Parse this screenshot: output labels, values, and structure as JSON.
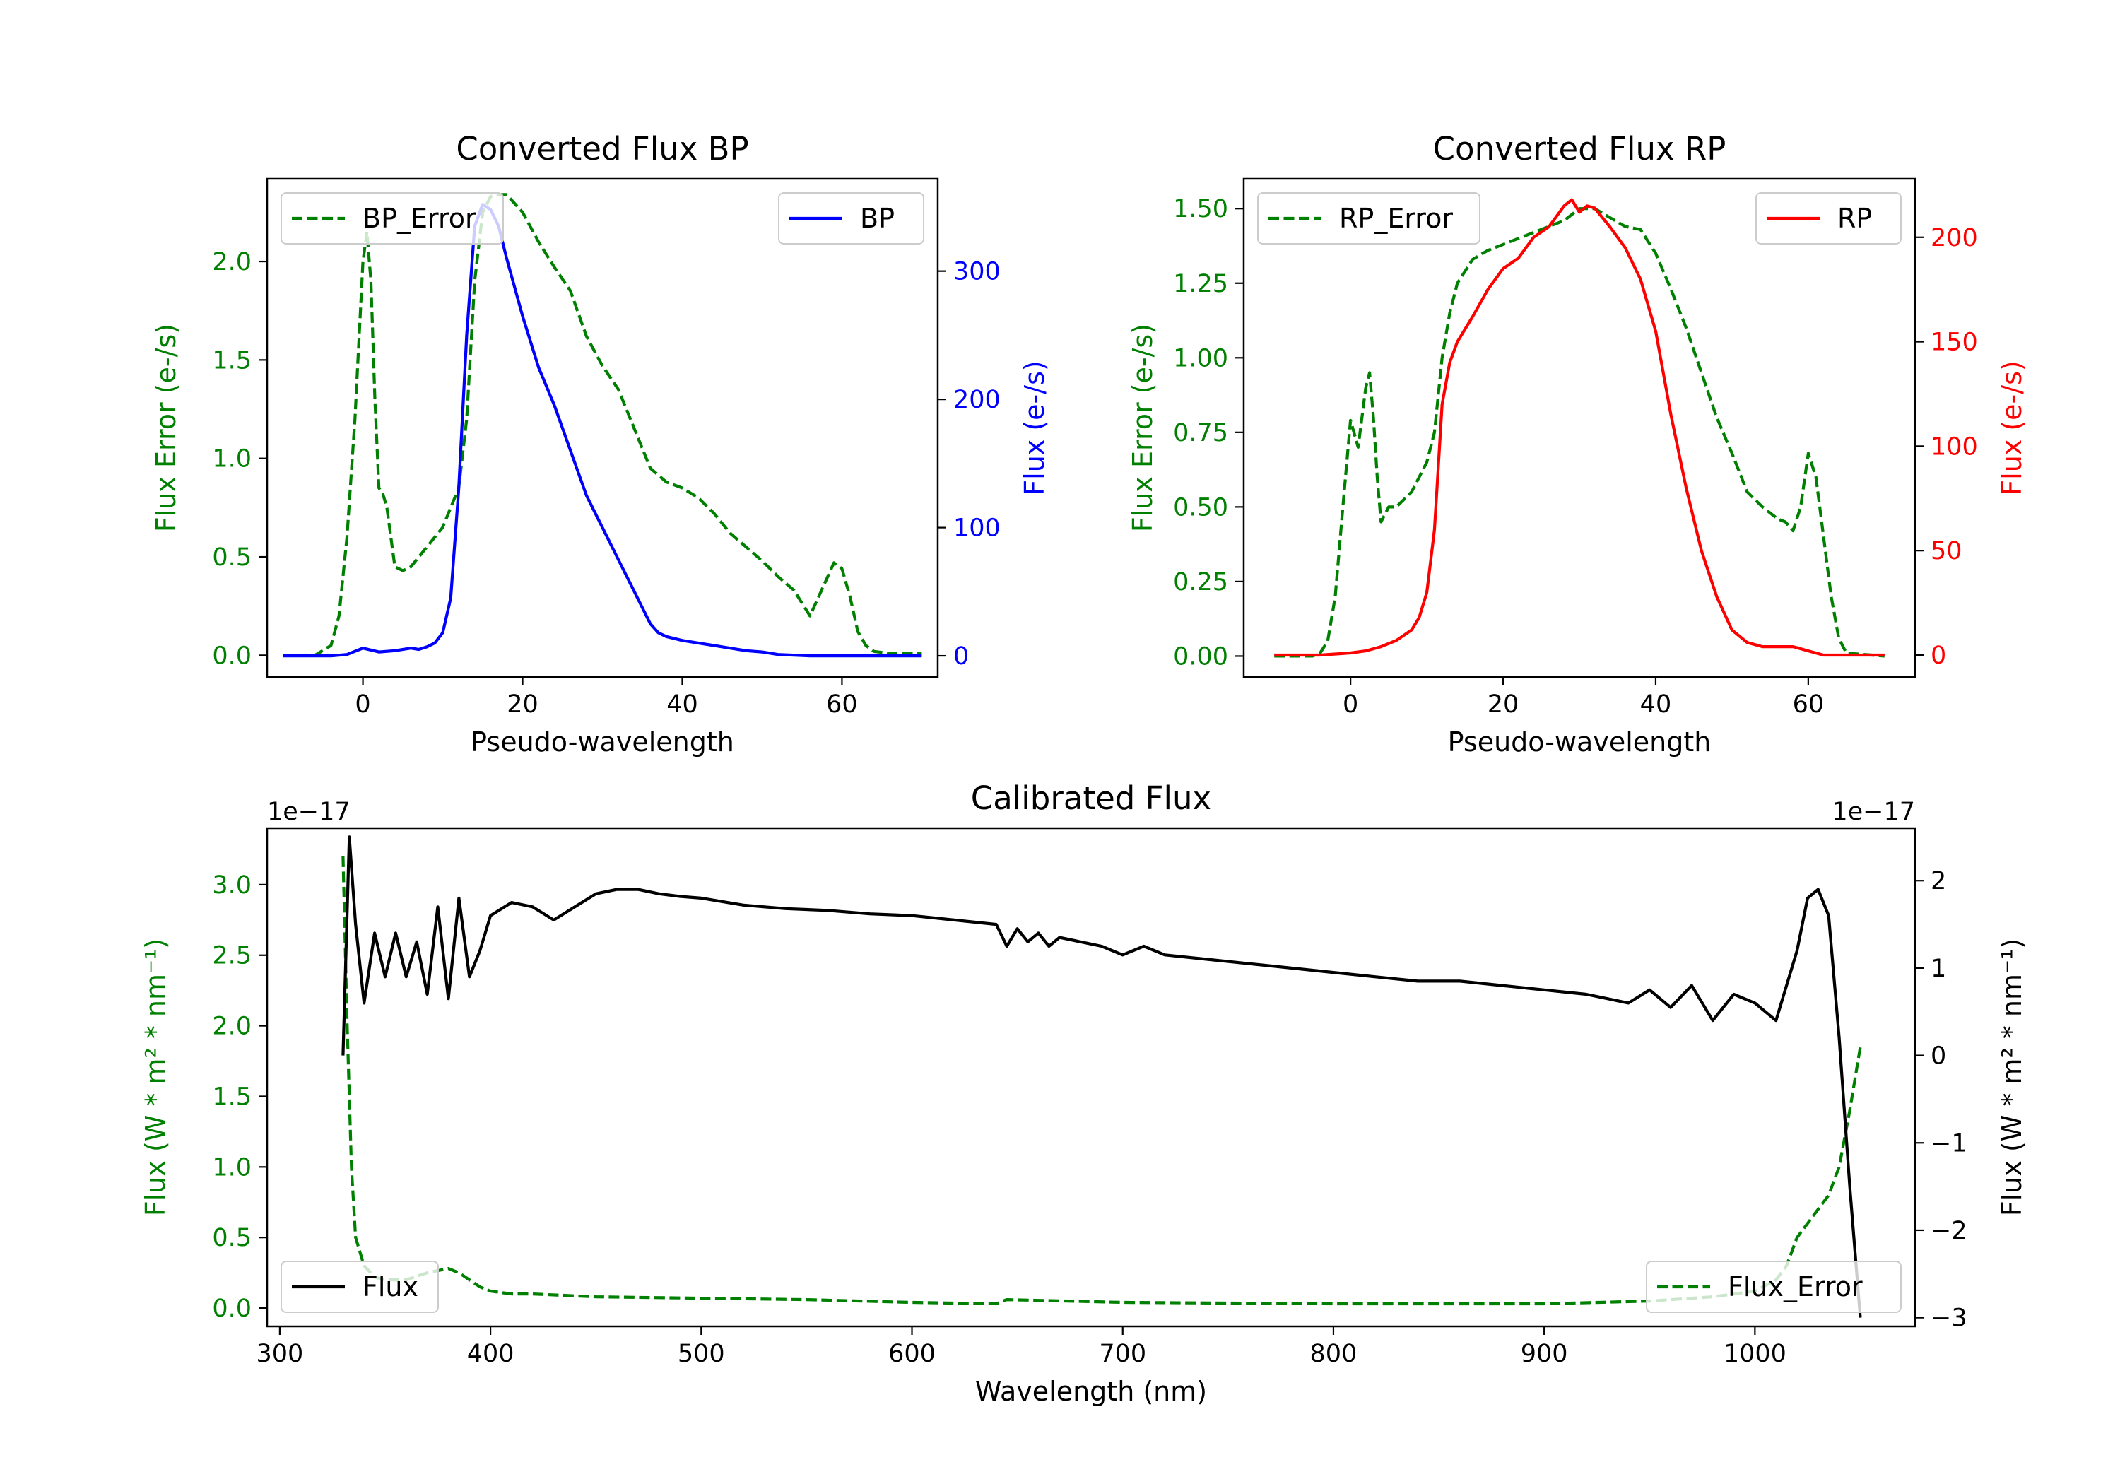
{
  "chart_data": [
    {
      "id": "bp",
      "type": "line",
      "title": "Converted Flux BP",
      "xlabel": "Pseudo-wavelength",
      "ylabel_left": "Flux Error (e-/s)",
      "ylabel_right": "Flux (e-/s)",
      "xlim": [
        -12,
        72
      ],
      "ylim_left": [
        -0.11,
        2.42
      ],
      "ylim_right": [
        -16.5,
        372
      ],
      "xticks": [
        0,
        20,
        40,
        60
      ],
      "yticks_left": [
        0.0,
        0.5,
        1.0,
        1.5,
        2.0
      ],
      "yticks_left_labels": [
        "0.0",
        "0.5",
        "1.0",
        "1.5",
        "2.0"
      ],
      "yticks_right": [
        0,
        100,
        200,
        300
      ],
      "yticks_right_labels": [
        "0",
        "100",
        "200",
        "300"
      ],
      "left_color": "#008000",
      "right_color": "#0000ff",
      "series": [
        {
          "name": "BP_Error",
          "axis": "left",
          "style": "dashed",
          "color": "#008000",
          "x": [
            -10,
            -6,
            -4,
            -3,
            -2,
            -1,
            0,
            0.5,
            1,
            1.5,
            2,
            2.5,
            3,
            3.5,
            4,
            5,
            6,
            8,
            10,
            12,
            13,
            14,
            15,
            16,
            17,
            18,
            20,
            22,
            24,
            26,
            28,
            30,
            32,
            34,
            36,
            38,
            40,
            42,
            44,
            46,
            48,
            50,
            52,
            54,
            56,
            58,
            59,
            60,
            61,
            62,
            63,
            64,
            66,
            70
          ],
          "y": [
            0.0,
            0.0,
            0.05,
            0.2,
            0.6,
            1.2,
            2.0,
            2.15,
            1.9,
            1.3,
            0.85,
            0.82,
            0.75,
            0.6,
            0.45,
            0.43,
            0.45,
            0.55,
            0.65,
            0.85,
            1.2,
            1.9,
            2.25,
            2.33,
            2.34,
            2.34,
            2.25,
            2.1,
            1.97,
            1.85,
            1.62,
            1.47,
            1.35,
            1.15,
            0.95,
            0.88,
            0.85,
            0.8,
            0.72,
            0.62,
            0.55,
            0.48,
            0.4,
            0.33,
            0.2,
            0.38,
            0.47,
            0.44,
            0.3,
            0.12,
            0.05,
            0.02,
            0.01,
            0.01
          ]
        },
        {
          "name": "BP",
          "axis": "right",
          "style": "solid",
          "color": "#0000ff",
          "x": [
            -10,
            -4,
            -2,
            0,
            2,
            4,
            6,
            7,
            8,
            9,
            10,
            11,
            12,
            13,
            14,
            15,
            16,
            17,
            18,
            20,
            22,
            24,
            26,
            28,
            30,
            32,
            34,
            36,
            37,
            38,
            40,
            42,
            44,
            46,
            48,
            50,
            52,
            56,
            60,
            64,
            70
          ],
          "y": [
            0,
            0,
            1,
            6,
            3,
            4,
            6,
            5,
            7,
            10,
            18,
            45,
            130,
            250,
            335,
            352,
            348,
            335,
            310,
            265,
            225,
            195,
            160,
            125,
            100,
            75,
            50,
            25,
            18,
            15,
            12,
            10,
            8,
            6,
            4,
            3,
            1,
            0,
            0,
            0,
            0
          ]
        }
      ],
      "legend": [
        {
          "label": "BP_Error",
          "position": "upper-left"
        },
        {
          "label": "BP",
          "position": "upper-right"
        }
      ]
    },
    {
      "id": "rp",
      "type": "line",
      "title": "Converted Flux RP",
      "xlabel": "Pseudo-wavelength",
      "ylabel_left": "Flux Error (e-/s)",
      "ylabel_right": "Flux (e-/s)",
      "xlim": [
        -14,
        74
      ],
      "ylim_left": [
        -0.07,
        1.6
      ],
      "ylim_right": [
        -10.5,
        228
      ],
      "xticks": [
        0,
        20,
        40,
        60
      ],
      "yticks_left": [
        0.0,
        0.25,
        0.5,
        0.75,
        1.0,
        1.25,
        1.5
      ],
      "yticks_left_labels": [
        "0.00",
        "0.25",
        "0.50",
        "0.75",
        "1.00",
        "1.25",
        "1.50"
      ],
      "yticks_right": [
        0,
        50,
        100,
        150,
        200
      ],
      "yticks_right_labels": [
        "0",
        "50",
        "100",
        "150",
        "200"
      ],
      "left_color": "#008000",
      "right_color": "#ff0000",
      "series": [
        {
          "name": "RP_Error",
          "axis": "left",
          "style": "dashed",
          "color": "#008000",
          "x": [
            -10,
            -5,
            -4,
            -3,
            -2,
            -1,
            0,
            1,
            2,
            2.5,
            3,
            3.5,
            4,
            5,
            6,
            8,
            10,
            11,
            12,
            13,
            14,
            16,
            18,
            20,
            22,
            24,
            26,
            28,
            30,
            32,
            34,
            36,
            38,
            40,
            42,
            44,
            46,
            48,
            50,
            52,
            54,
            56,
            57,
            58,
            59,
            60,
            61,
            62,
            63,
            64,
            65,
            70
          ],
          "y": [
            0.0,
            0.0,
            0.01,
            0.05,
            0.2,
            0.5,
            0.79,
            0.7,
            0.9,
            0.95,
            0.8,
            0.6,
            0.45,
            0.5,
            0.5,
            0.55,
            0.65,
            0.75,
            1.0,
            1.15,
            1.25,
            1.33,
            1.36,
            1.38,
            1.4,
            1.42,
            1.44,
            1.46,
            1.5,
            1.5,
            1.47,
            1.44,
            1.43,
            1.35,
            1.23,
            1.1,
            0.95,
            0.8,
            0.68,
            0.55,
            0.5,
            0.46,
            0.45,
            0.42,
            0.5,
            0.68,
            0.6,
            0.4,
            0.2,
            0.06,
            0.01,
            0.0
          ]
        },
        {
          "name": "RP",
          "axis": "right",
          "style": "solid",
          "color": "#ff0000",
          "x": [
            -10,
            -4,
            0,
            2,
            4,
            6,
            8,
            9,
            10,
            11,
            12,
            13,
            14,
            16,
            18,
            20,
            22,
            24,
            26,
            28,
            29,
            30,
            31,
            32,
            34,
            36,
            38,
            40,
            42,
            44,
            46,
            48,
            50,
            52,
            54,
            58,
            60,
            62,
            64,
            70
          ],
          "y": [
            0,
            0,
            1,
            2,
            4,
            7,
            12,
            18,
            30,
            60,
            120,
            140,
            150,
            162,
            175,
            185,
            190,
            200,
            205,
            215,
            218,
            212,
            215,
            214,
            205,
            195,
            180,
            155,
            115,
            80,
            50,
            28,
            12,
            6,
            4,
            4,
            2,
            0,
            0,
            0
          ]
        }
      ],
      "legend": [
        {
          "label": "RP_Error",
          "position": "upper-left"
        },
        {
          "label": "RP",
          "position": "upper-right"
        }
      ]
    },
    {
      "id": "cal",
      "type": "line",
      "title": "Calibrated Flux",
      "xlabel": "Wavelength (nm)",
      "ylabel_left": "Flux (W * m² * nm⁻¹)",
      "ylabel_right": "Flux (W * m² * nm⁻¹)",
      "offset_left": "1e−17",
      "offset_right": "1e−17",
      "xlim": [
        294,
        1076
      ],
      "ylim_left": [
        -0.13,
        3.4
      ],
      "ylim_right": [
        -3.1,
        2.6
      ],
      "xticks": [
        300,
        400,
        500,
        600,
        700,
        800,
        900,
        1000
      ],
      "yticks_left": [
        0.0,
        0.5,
        1.0,
        1.5,
        2.0,
        2.5,
        3.0
      ],
      "yticks_left_labels": [
        "0.0",
        "0.5",
        "1.0",
        "1.5",
        "2.0",
        "2.5",
        "3.0"
      ],
      "yticks_right": [
        -3,
        -2,
        -1,
        0,
        1,
        2
      ],
      "yticks_right_labels": [
        "−3",
        "−2",
        "−1",
        "0",
        "1",
        "2"
      ],
      "left_color": "#008000",
      "right_color": "#000000",
      "series": [
        {
          "name": "Flux_Error",
          "axis": "left",
          "style": "dashed",
          "color": "#008000",
          "x": [
            330,
            332,
            334,
            336,
            340,
            345,
            350,
            360,
            370,
            380,
            385,
            390,
            395,
            400,
            410,
            420,
            450,
            500,
            550,
            600,
            640,
            645,
            700,
            800,
            900,
            950,
            980,
            1000,
            1010,
            1015,
            1020,
            1025,
            1030,
            1035,
            1040,
            1045,
            1050
          ],
          "y": [
            3.2,
            2.0,
            1.0,
            0.5,
            0.3,
            0.22,
            0.2,
            0.2,
            0.25,
            0.28,
            0.25,
            0.2,
            0.15,
            0.12,
            0.1,
            0.1,
            0.08,
            0.07,
            0.06,
            0.04,
            0.03,
            0.06,
            0.04,
            0.03,
            0.03,
            0.05,
            0.08,
            0.12,
            0.2,
            0.3,
            0.5,
            0.6,
            0.7,
            0.8,
            1.0,
            1.4,
            1.85
          ]
        },
        {
          "name": "Flux",
          "axis": "right",
          "style": "solid",
          "color": "#000000",
          "x": [
            330,
            333,
            336,
            340,
            345,
            350,
            355,
            360,
            365,
            370,
            375,
            380,
            385,
            390,
            395,
            400,
            410,
            420,
            430,
            440,
            450,
            460,
            470,
            480,
            490,
            500,
            520,
            540,
            560,
            580,
            600,
            620,
            640,
            645,
            650,
            655,
            660,
            665,
            670,
            680,
            690,
            700,
            710,
            720,
            740,
            760,
            780,
            800,
            820,
            840,
            860,
            880,
            900,
            920,
            940,
            950,
            960,
            970,
            980,
            990,
            1000,
            1010,
            1020,
            1025,
            1030,
            1035,
            1040,
            1045,
            1050
          ],
          "y": [
            0.0,
            2.5,
            1.5,
            0.6,
            1.4,
            0.9,
            1.4,
            0.9,
            1.3,
            0.7,
            1.7,
            0.65,
            1.8,
            0.9,
            1.2,
            1.6,
            1.75,
            1.7,
            1.55,
            1.7,
            1.85,
            1.9,
            1.9,
            1.85,
            1.82,
            1.8,
            1.72,
            1.68,
            1.66,
            1.62,
            1.6,
            1.55,
            1.5,
            1.25,
            1.45,
            1.3,
            1.4,
            1.25,
            1.35,
            1.3,
            1.25,
            1.15,
            1.25,
            1.15,
            1.1,
            1.05,
            1.0,
            0.95,
            0.9,
            0.85,
            0.85,
            0.8,
            0.75,
            0.7,
            0.6,
            0.75,
            0.55,
            0.8,
            0.4,
            0.7,
            0.6,
            0.4,
            1.2,
            1.8,
            1.9,
            1.6,
            0.2,
            -1.5,
            -3.0
          ]
        }
      ],
      "legend": [
        {
          "label": "Flux",
          "position": "lower-left"
        },
        {
          "label": "Flux_Error",
          "position": "lower-right"
        }
      ]
    }
  ]
}
